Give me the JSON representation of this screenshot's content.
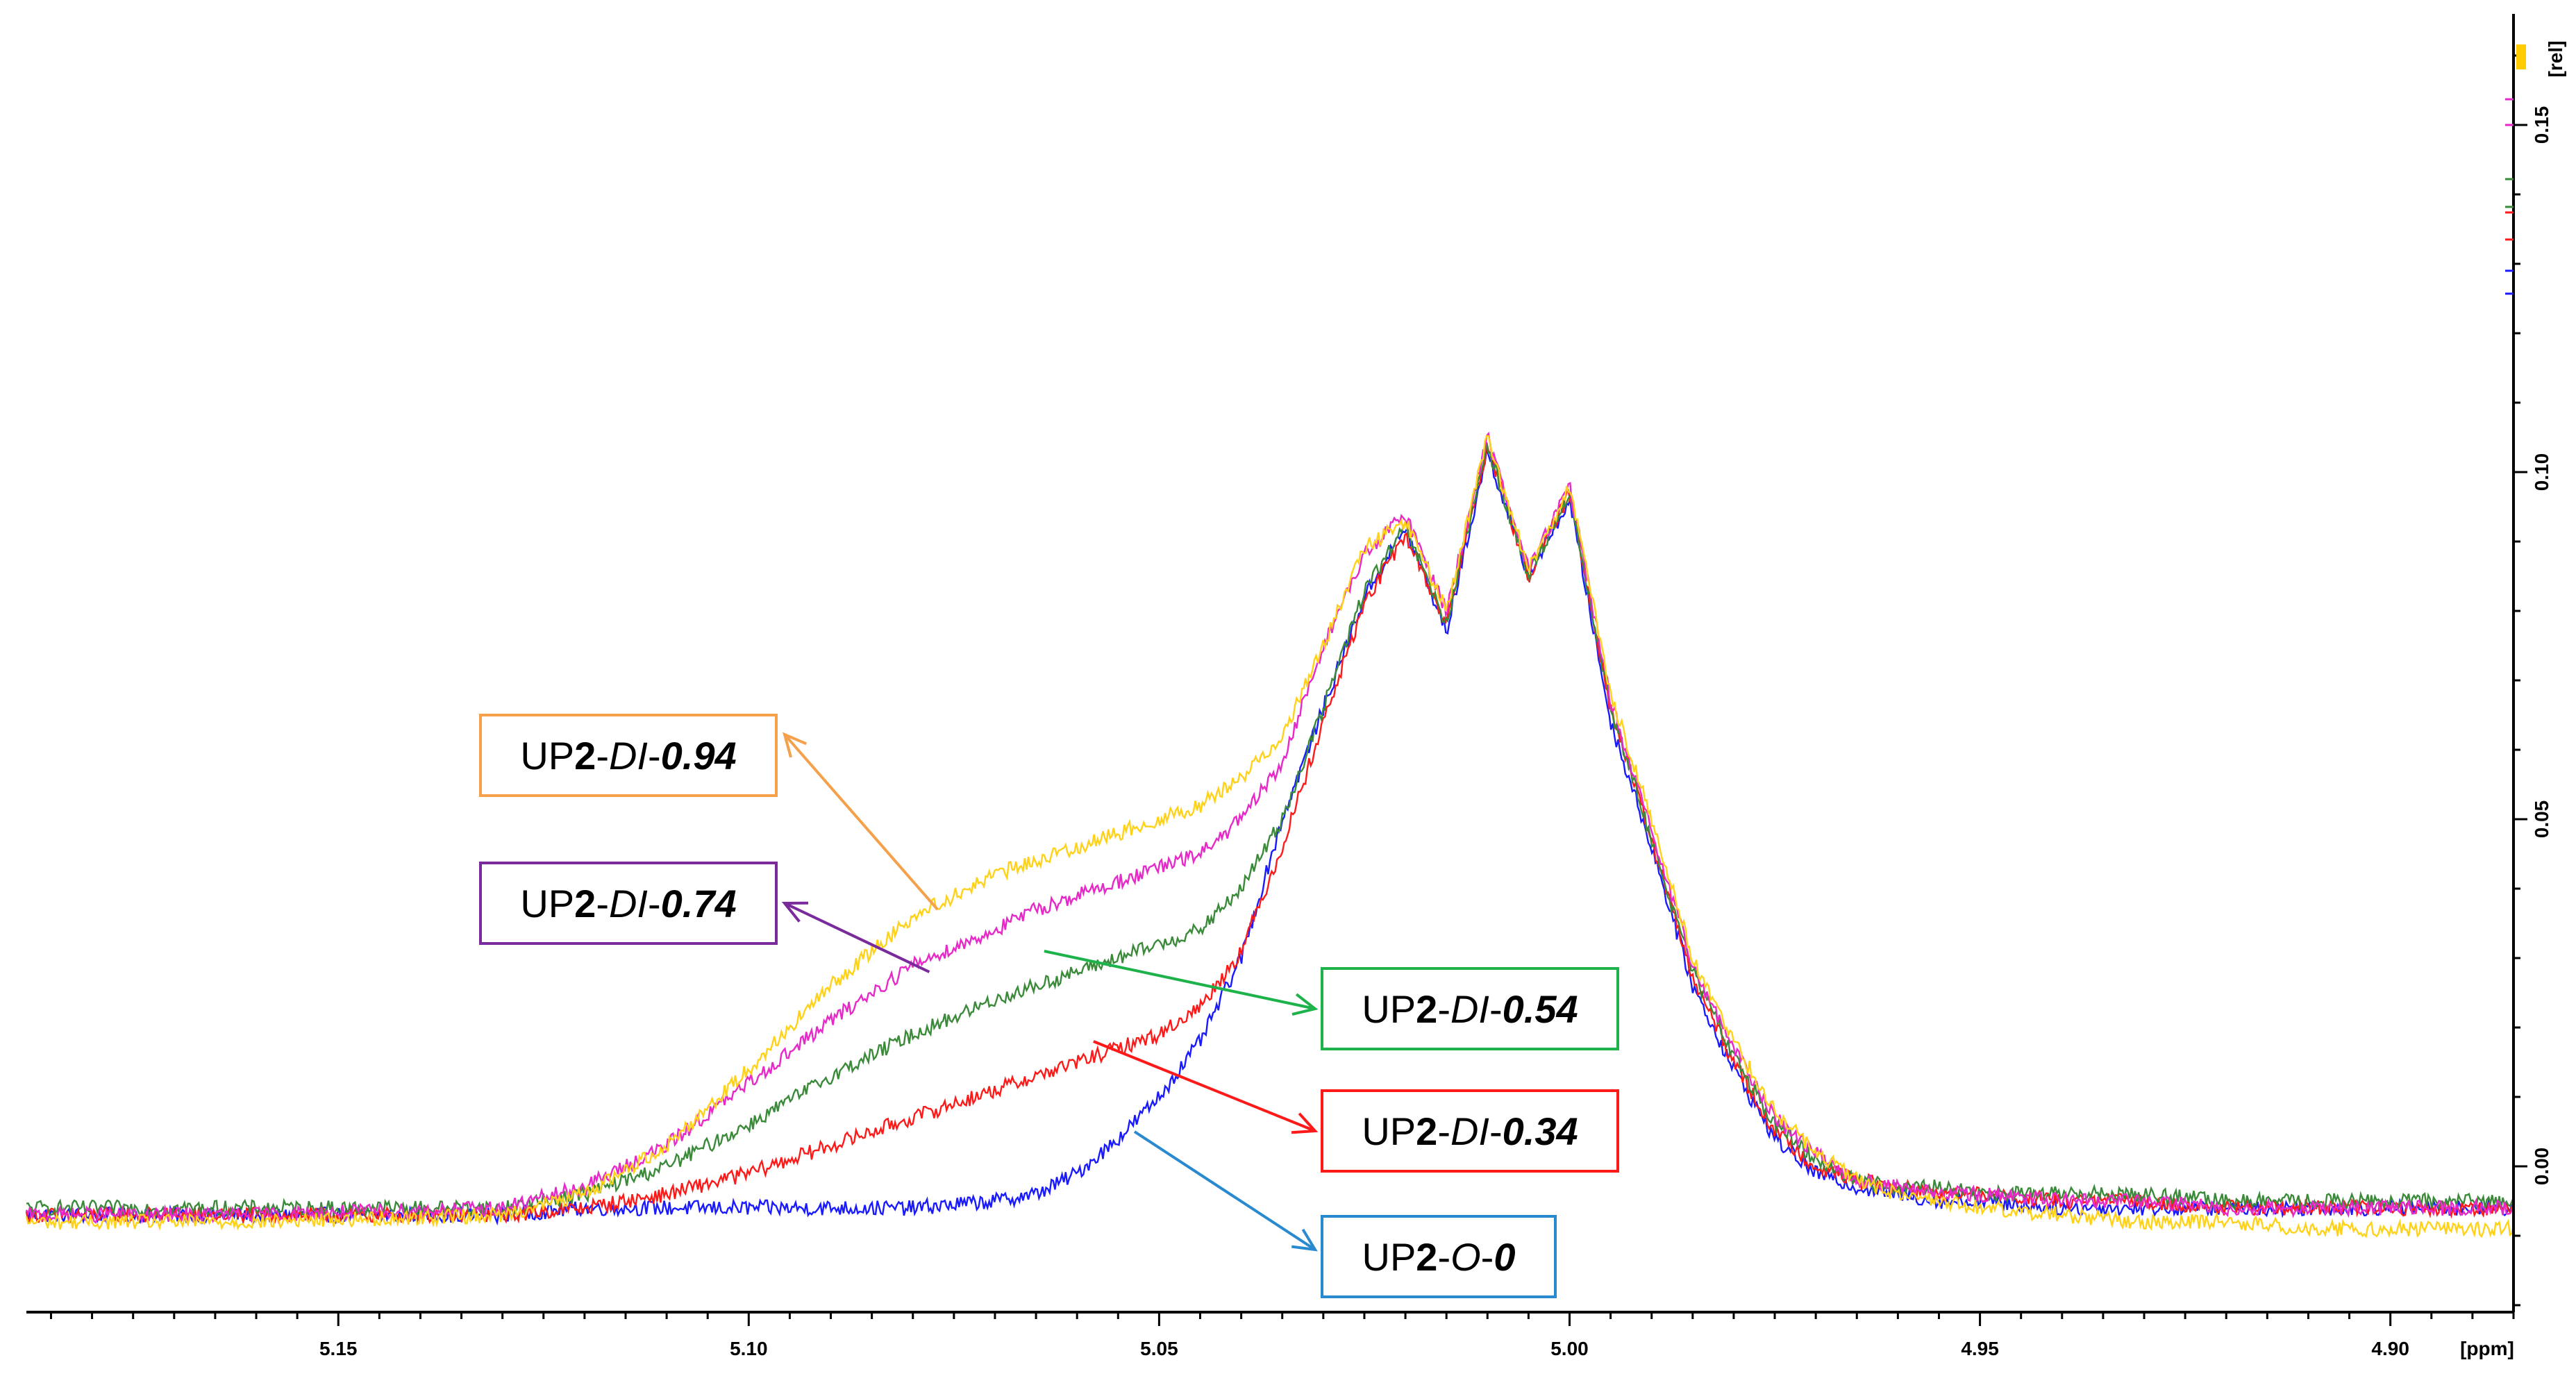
{
  "chart_data": {
    "type": "line",
    "x_unit_label": "[ppm]",
    "y_unit_label": "[rel]",
    "xlim": [
      4.885,
      5.188
    ],
    "ylim": [
      -0.021,
      0.166
    ],
    "x_reversed": true,
    "grid": false,
    "legend": "none",
    "x_ticks": [
      5.15,
      5.1,
      5.05,
      5.0,
      4.95,
      4.9
    ],
    "x_tick_labels": [
      "5.15",
      "5.10",
      "5.05",
      "5.00",
      "4.95",
      "4.90"
    ],
    "y_ticks": [
      0.0,
      0.05,
      0.1,
      0.15
    ],
    "y_tick_labels": [
      "0.00",
      "0.05",
      "0.10",
      "0.15"
    ],
    "series": [
      {
        "color": "#1a1aff",
        "x": [
          5.188,
          5.16,
          5.13,
          5.12,
          5.11,
          5.1,
          5.09,
          5.08,
          5.07,
          5.065,
          5.06,
          5.055,
          5.05,
          5.045,
          5.04,
          5.035,
          5.03,
          5.025,
          5.02,
          5.015,
          5.01,
          5.005,
          5.0,
          4.995,
          4.99,
          4.985,
          4.98,
          4.975,
          4.97,
          4.965,
          4.96,
          4.955,
          4.95,
          4.94,
          4.93,
          4.92,
          4.91,
          4.9,
          4.885
        ],
        "y": [
          -0.007,
          -0.007,
          -0.007,
          -0.006,
          -0.006,
          -0.006,
          -0.006,
          -0.006,
          -0.005,
          -0.004,
          -0.001,
          0.004,
          0.01,
          0.018,
          0.03,
          0.05,
          0.066,
          0.082,
          0.092,
          0.077,
          0.103,
          0.085,
          0.096,
          0.064,
          0.046,
          0.026,
          0.014,
          0.004,
          -0.001,
          -0.003,
          -0.004,
          -0.005,
          -0.005,
          -0.006,
          -0.006,
          -0.006,
          -0.006,
          -0.006,
          -0.006
        ]
      },
      {
        "color": "#ff1a1a",
        "x": [
          5.188,
          5.16,
          5.13,
          5.12,
          5.11,
          5.1,
          5.09,
          5.08,
          5.07,
          5.065,
          5.06,
          5.055,
          5.05,
          5.045,
          5.04,
          5.035,
          5.03,
          5.025,
          5.02,
          5.015,
          5.01,
          5.005,
          5.0,
          4.995,
          4.99,
          4.985,
          4.98,
          4.975,
          4.97,
          4.965,
          4.96,
          4.955,
          4.95,
          4.94,
          4.93,
          4.92,
          4.91,
          4.9,
          4.885
        ],
        "y": [
          -0.007,
          -0.007,
          -0.007,
          -0.006,
          -0.004,
          -0.001,
          0.003,
          0.007,
          0.011,
          0.013,
          0.015,
          0.017,
          0.019,
          0.023,
          0.031,
          0.046,
          0.064,
          0.081,
          0.091,
          0.078,
          0.104,
          0.085,
          0.097,
          0.066,
          0.047,
          0.027,
          0.015,
          0.005,
          0.0,
          -0.002,
          -0.003,
          -0.004,
          -0.004,
          -0.005,
          -0.005,
          -0.006,
          -0.006,
          -0.006,
          -0.006
        ]
      },
      {
        "color": "#3a8a3a",
        "x": [
          5.188,
          5.16,
          5.13,
          5.12,
          5.11,
          5.1,
          5.09,
          5.08,
          5.07,
          5.065,
          5.06,
          5.055,
          5.05,
          5.045,
          5.04,
          5.035,
          5.03,
          5.025,
          5.02,
          5.015,
          5.01,
          5.005,
          5.0,
          4.995,
          4.99,
          4.985,
          4.98,
          4.975,
          4.97,
          4.965,
          4.96,
          4.955,
          4.95,
          4.94,
          4.93,
          4.92,
          4.91,
          4.9,
          4.885
        ],
        "y": [
          -0.006,
          -0.006,
          -0.006,
          -0.004,
          0.0,
          0.006,
          0.013,
          0.019,
          0.024,
          0.026,
          0.028,
          0.03,
          0.032,
          0.034,
          0.04,
          0.05,
          0.066,
          0.083,
          0.092,
          0.078,
          0.104,
          0.085,
          0.097,
          0.066,
          0.047,
          0.028,
          0.016,
          0.006,
          0.001,
          -0.002,
          -0.003,
          -0.003,
          -0.004,
          -0.004,
          -0.004,
          -0.005,
          -0.005,
          -0.005,
          -0.005
        ]
      },
      {
        "color": "#e629c8",
        "x": [
          5.188,
          5.16,
          5.13,
          5.12,
          5.11,
          5.1,
          5.09,
          5.08,
          5.07,
          5.065,
          5.06,
          5.055,
          5.05,
          5.045,
          5.04,
          5.035,
          5.03,
          5.025,
          5.02,
          5.015,
          5.01,
          5.005,
          5.0,
          4.995,
          4.99,
          4.985,
          4.98,
          4.975,
          4.97,
          4.965,
          4.96,
          4.955,
          4.95,
          4.94,
          4.93,
          4.92,
          4.91,
          4.9,
          4.885
        ],
        "y": [
          -0.007,
          -0.007,
          -0.006,
          -0.003,
          0.003,
          0.012,
          0.021,
          0.029,
          0.034,
          0.037,
          0.039,
          0.041,
          0.043,
          0.045,
          0.05,
          0.058,
          0.075,
          0.088,
          0.094,
          0.08,
          0.105,
          0.086,
          0.098,
          0.067,
          0.048,
          0.029,
          0.017,
          0.007,
          0.002,
          -0.002,
          -0.003,
          -0.004,
          -0.004,
          -0.005,
          -0.005,
          -0.006,
          -0.006,
          -0.006,
          -0.006
        ]
      },
      {
        "color": "#ffd21a",
        "x": [
          5.188,
          5.16,
          5.13,
          5.12,
          5.11,
          5.1,
          5.09,
          5.08,
          5.07,
          5.065,
          5.06,
          5.055,
          5.05,
          5.045,
          5.04,
          5.035,
          5.03,
          5.025,
          5.02,
          5.015,
          5.01,
          5.005,
          5.0,
          4.995,
          4.99,
          4.985,
          4.98,
          4.975,
          4.97,
          4.965,
          4.96,
          4.955,
          4.95,
          4.94,
          4.93,
          4.92,
          4.91,
          4.9,
          4.885
        ],
        "y": [
          -0.008,
          -0.008,
          -0.007,
          -0.004,
          0.003,
          0.014,
          0.026,
          0.036,
          0.042,
          0.044,
          0.046,
          0.048,
          0.05,
          0.052,
          0.056,
          0.062,
          0.075,
          0.089,
          0.093,
          0.08,
          0.105,
          0.086,
          0.098,
          0.068,
          0.05,
          0.03,
          0.018,
          0.008,
          0.002,
          -0.002,
          -0.004,
          -0.005,
          -0.006,
          -0.007,
          -0.008,
          -0.008,
          -0.009,
          -0.009,
          -0.009
        ]
      }
    ],
    "annotations": [
      {
        "p1": "UP",
        "p2": "2",
        "p3": "-",
        "p4": "DI",
        "p5": "-",
        "p6": "0.94",
        "color": "#f5a04a",
        "arrow_to": [
          5.077,
          0.037
        ]
      },
      {
        "p1": "UP",
        "p2": "2",
        "p3": "-",
        "p4": "DI",
        "p5": "-",
        "p6": "0.74",
        "color": "#7a2a9a",
        "arrow_to": [
          5.078,
          0.028
        ]
      },
      {
        "p1": "UP",
        "p2": "2",
        "p3": "-",
        "p4": "DI",
        "p5": "-",
        "p6": "0.54",
        "color": "#1db34a",
        "arrow_to": [
          5.064,
          0.031
        ]
      },
      {
        "p1": "UP",
        "p2": "2",
        "p3": "-",
        "p4": "DI",
        "p5": "-",
        "p6": "0.34",
        "color": "#ff1a1a",
        "arrow_to": [
          5.058,
          0.018
        ]
      },
      {
        "p1": "UP",
        "p2": "2",
        "p3": "-",
        "p4": "O",
        "p5": "-",
        "p6": "0",
        "color": "#2a8ad0",
        "arrow_to": [
          5.053,
          0.005
        ]
      }
    ]
  }
}
